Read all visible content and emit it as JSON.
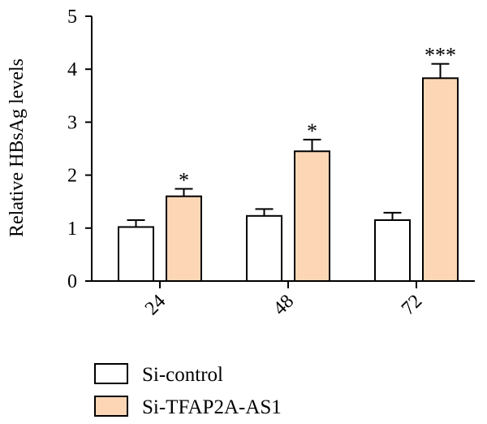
{
  "chart_data": {
    "type": "bar",
    "ylabel": "Relative HBsAg levels",
    "xlabel": "",
    "ylim": [
      0,
      5
    ],
    "yticks": [
      0,
      1,
      2,
      3,
      4,
      5
    ],
    "categories": [
      "24",
      "48",
      "72"
    ],
    "series": [
      {
        "name": "Si-control",
        "color": "#ffffff",
        "values": [
          1.02,
          1.23,
          1.15
        ],
        "errors": [
          0.13,
          0.13,
          0.14
        ]
      },
      {
        "name": "Si-TFAP2A-AS1",
        "color": "#fdd7b5",
        "values": [
          1.6,
          2.45,
          3.83
        ],
        "errors": [
          0.14,
          0.22,
          0.27
        ]
      }
    ],
    "annotations": [
      "*",
      "*",
      "***"
    ],
    "legend": "bottom-left",
    "grid": false
  }
}
